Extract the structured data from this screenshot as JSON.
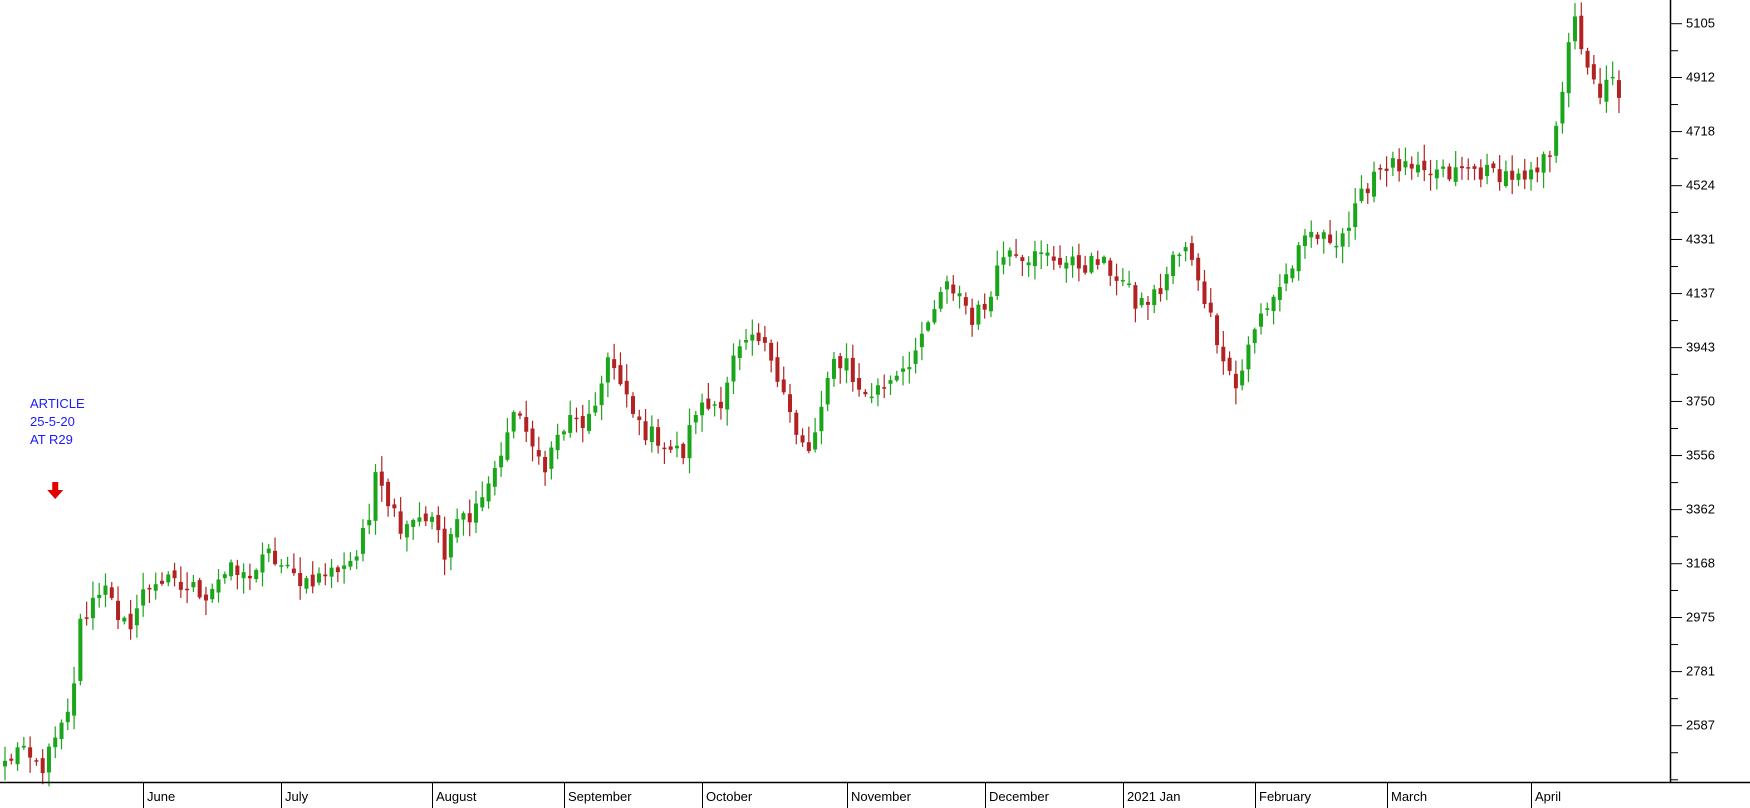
{
  "chart_data": {
    "type": "candlestick",
    "title": "",
    "ylim": [
      2385,
      5190
    ],
    "grid": false,
    "colors": {
      "up": "#1aa51a",
      "down": "#b22222",
      "annotation": "#1a1aff",
      "arrow": "#e00000"
    },
    "y_ticks": [
      {
        "value": 5105,
        "label": "5105"
      },
      {
        "value": 5008,
        "label": ""
      },
      {
        "value": 4912,
        "label": "4912"
      },
      {
        "value": 4815,
        "label": ""
      },
      {
        "value": 4718,
        "label": "4718"
      },
      {
        "value": 4621,
        "label": ""
      },
      {
        "value": 4524,
        "label": "4524"
      },
      {
        "value": 4428,
        "label": ""
      },
      {
        "value": 4331,
        "label": "4331"
      },
      {
        "value": 4234,
        "label": ""
      },
      {
        "value": 4137,
        "label": "4137"
      },
      {
        "value": 4040,
        "label": ""
      },
      {
        "value": 3943,
        "label": "3943"
      },
      {
        "value": 3847,
        "label": ""
      },
      {
        "value": 3750,
        "label": "3750"
      },
      {
        "value": 3653,
        "label": ""
      },
      {
        "value": 3556,
        "label": "3556"
      },
      {
        "value": 3459,
        "label": ""
      },
      {
        "value": 3362,
        "label": "3362"
      },
      {
        "value": 3265,
        "label": ""
      },
      {
        "value": 3168,
        "label": "3168"
      },
      {
        "value": 3072,
        "label": ""
      },
      {
        "value": 2975,
        "label": "2975"
      },
      {
        "value": 2878,
        "label": ""
      },
      {
        "value": 2781,
        "label": "2781"
      },
      {
        "value": 2684,
        "label": ""
      },
      {
        "value": 2587,
        "label": "2587"
      },
      {
        "value": 2490,
        "label": ""
      },
      {
        "value": 2393,
        "label": ""
      }
    ],
    "x_labels": [
      "June",
      "July",
      "August",
      "September",
      "October",
      "November",
      "December",
      "2021 Jan",
      "February",
      "March",
      "April"
    ],
    "month_day_index": [
      22,
      44,
      68,
      89,
      111,
      134,
      156,
      178,
      199,
      220,
      243
    ],
    "total_days": 257,
    "anchors": [
      [
        0,
        2450
      ],
      [
        2,
        2500
      ],
      [
        4,
        2460
      ],
      [
        6,
        2440
      ],
      [
        8,
        2530
      ],
      [
        10,
        2620
      ],
      [
        11,
        2750
      ],
      [
        12,
        2950
      ],
      [
        14,
        3040
      ],
      [
        16,
        3110
      ],
      [
        18,
        2940
      ],
      [
        20,
        2960
      ],
      [
        22,
        3060
      ],
      [
        24,
        3110
      ],
      [
        26,
        3100
      ],
      [
        28,
        3080
      ],
      [
        30,
        3080
      ],
      [
        32,
        3060
      ],
      [
        34,
        3120
      ],
      [
        36,
        3140
      ],
      [
        38,
        3120
      ],
      [
        40,
        3150
      ],
      [
        42,
        3200
      ],
      [
        44,
        3160
      ],
      [
        46,
        3120
      ],
      [
        48,
        3110
      ],
      [
        50,
        3120
      ],
      [
        52,
        3140
      ],
      [
        54,
        3170
      ],
      [
        56,
        3200
      ],
      [
        58,
        3330
      ],
      [
        59,
        3530
      ],
      [
        61,
        3400
      ],
      [
        63,
        3310
      ],
      [
        65,
        3340
      ],
      [
        67,
        3340
      ],
      [
        69,
        3290
      ],
      [
        70,
        3180
      ],
      [
        72,
        3320
      ],
      [
        74,
        3350
      ],
      [
        76,
        3410
      ],
      [
        78,
        3500
      ],
      [
        80,
        3640
      ],
      [
        82,
        3720
      ],
      [
        84,
        3560
      ],
      [
        86,
        3530
      ],
      [
        88,
        3620
      ],
      [
        90,
        3680
      ],
      [
        92,
        3670
      ],
      [
        94,
        3700
      ],
      [
        96,
        3930
      ],
      [
        98,
        3800
      ],
      [
        100,
        3700
      ],
      [
        102,
        3640
      ],
      [
        104,
        3620
      ],
      [
        106,
        3580
      ],
      [
        108,
        3560
      ],
      [
        110,
        3720
      ],
      [
        112,
        3730
      ],
      [
        114,
        3760
      ],
      [
        116,
        3900
      ],
      [
        118,
        3950
      ],
      [
        120,
        3960
      ],
      [
        122,
        3910
      ],
      [
        124,
        3800
      ],
      [
        126,
        3620
      ],
      [
        128,
        3560
      ],
      [
        130,
        3720
      ],
      [
        132,
        3890
      ],
      [
        134,
        3900
      ],
      [
        136,
        3780
      ],
      [
        138,
        3780
      ],
      [
        140,
        3810
      ],
      [
        142,
        3860
      ],
      [
        144,
        3900
      ],
      [
        146,
        3960
      ],
      [
        148,
        4080
      ],
      [
        150,
        4160
      ],
      [
        152,
        4140
      ],
      [
        154,
        4050
      ],
      [
        156,
        4090
      ],
      [
        158,
        4230
      ],
      [
        160,
        4320
      ],
      [
        162,
        4280
      ],
      [
        164,
        4270
      ],
      [
        166,
        4270
      ],
      [
        168,
        4260
      ],
      [
        170,
        4240
      ],
      [
        172,
        4240
      ],
      [
        174,
        4250
      ],
      [
        176,
        4220
      ],
      [
        178,
        4180
      ],
      [
        180,
        4100
      ],
      [
        182,
        4110
      ],
      [
        184,
        4150
      ],
      [
        186,
        4260
      ],
      [
        188,
        4290
      ],
      [
        190,
        4200
      ],
      [
        192,
        4050
      ],
      [
        194,
        3920
      ],
      [
        196,
        3800
      ],
      [
        198,
        3940
      ],
      [
        200,
        4060
      ],
      [
        202,
        4130
      ],
      [
        204,
        4200
      ],
      [
        206,
        4280
      ],
      [
        208,
        4350
      ],
      [
        210,
        4330
      ],
      [
        212,
        4340
      ],
      [
        214,
        4380
      ],
      [
        216,
        4480
      ],
      [
        218,
        4580
      ],
      [
        220,
        4600
      ],
      [
        222,
        4590
      ],
      [
        224,
        4570
      ],
      [
        226,
        4560
      ],
      [
        228,
        4570
      ],
      [
        230,
        4560
      ],
      [
        232,
        4580
      ],
      [
        234,
        4580
      ],
      [
        236,
        4570
      ],
      [
        238,
        4570
      ],
      [
        240,
        4560
      ],
      [
        242,
        4530
      ],
      [
        244,
        4570
      ],
      [
        246,
        4650
      ],
      [
        248,
        4880
      ],
      [
        249,
        5010
      ],
      [
        250,
        5110
      ],
      [
        251,
        5030
      ],
      [
        252,
        4960
      ],
      [
        253,
        4880
      ],
      [
        254,
        4820
      ],
      [
        255,
        4890
      ],
      [
        256,
        4900
      ],
      [
        257,
        4860
      ]
    ],
    "annotations": [
      {
        "day": 8,
        "lines": [
          "ARTICLE",
          "25-5-20",
          "AT R29"
        ],
        "arrow": "down"
      }
    ]
  }
}
